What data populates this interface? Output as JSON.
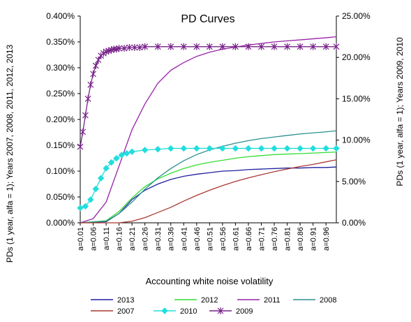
{
  "chart_data": {
    "type": "line",
    "title": "PD Curves",
    "xlabel": "Accounting white noise volatility",
    "ylabel_left": "PDs (1 year, alfa = 1); Years 2007, 2008, 2011, 2012, 2013",
    "ylabel_right": "PDs (1 year, alfa = 1); Years 2009, 2010",
    "x_labels": [
      "a=0.01",
      "a=0.06",
      "a=0.11",
      "a=0.16",
      "a=0.21",
      "a=0.26",
      "a=0.31",
      "a=0.36",
      "a=0.41",
      "a=0.46",
      "a=0.51",
      "a=0.56",
      "a=0.61",
      "a=0.66",
      "a=0.71",
      "a=0.76",
      "a=0.81",
      "a=0.86",
      "a=0.91",
      "a=0.96"
    ],
    "x_range": [
      0.01,
      1.0
    ],
    "ylim_left": [
      0,
      0.004
    ],
    "yticks_left": [
      "0.000%",
      "0.050%",
      "0.100%",
      "0.150%",
      "0.200%",
      "0.250%",
      "0.300%",
      "0.350%",
      "0.400%"
    ],
    "ylim_right": [
      0,
      0.25
    ],
    "yticks_right": [
      "0.00%",
      "5.00%",
      "10.00%",
      "15.00%",
      "20.00%",
      "25.00%"
    ],
    "grid": false,
    "legend_position": "bottom",
    "series": [
      {
        "name": "2013",
        "axis": "left",
        "color": "#1f1fa0",
        "marker": "none",
        "x": [
          0.01,
          0.11,
          0.16,
          0.21,
          0.26,
          0.31,
          0.36,
          0.41,
          0.46,
          0.51,
          0.56,
          0.61,
          0.66,
          0.71,
          0.76,
          0.81,
          0.86,
          0.91,
          0.96,
          1.0
        ],
        "values": [
          0.0,
          2e-05,
          0.00018,
          0.00045,
          0.00063,
          0.00075,
          0.00084,
          0.0009,
          0.00094,
          0.00097,
          0.001,
          0.00101,
          0.00103,
          0.00104,
          0.00105,
          0.00106,
          0.00106,
          0.00107,
          0.00107,
          0.00108
        ]
      },
      {
        "name": "2012",
        "axis": "left",
        "color": "#33dd33",
        "marker": "none",
        "x": [
          0.01,
          0.11,
          0.16,
          0.21,
          0.26,
          0.31,
          0.36,
          0.41,
          0.46,
          0.51,
          0.56,
          0.61,
          0.66,
          0.71,
          0.76,
          0.81,
          0.86,
          0.91,
          0.96,
          1.0
        ],
        "values": [
          0.0,
          4e-05,
          0.00022,
          0.00048,
          0.0007,
          0.00085,
          0.00096,
          0.00105,
          0.00112,
          0.00117,
          0.00121,
          0.00125,
          0.00128,
          0.0013,
          0.00132,
          0.00133,
          0.00134,
          0.00135,
          0.00136,
          0.00137
        ]
      },
      {
        "name": "2011",
        "axis": "left",
        "color": "#9922aa",
        "marker": "none",
        "x": [
          0.01,
          0.06,
          0.11,
          0.16,
          0.21,
          0.26,
          0.31,
          0.36,
          0.41,
          0.46,
          0.51,
          0.56,
          0.61,
          0.66,
          0.71,
          0.76,
          0.81,
          0.86,
          0.91,
          0.96,
          1.0
        ],
        "values": [
          0.0,
          8e-05,
          0.0004,
          0.0011,
          0.0018,
          0.0023,
          0.0027,
          0.00295,
          0.0031,
          0.00322,
          0.0033,
          0.00336,
          0.0034,
          0.00344,
          0.00347,
          0.0035,
          0.00352,
          0.00354,
          0.00356,
          0.00358,
          0.0036
        ]
      },
      {
        "name": "2008",
        "axis": "left",
        "color": "#2a9090",
        "marker": "none",
        "x": [
          0.01,
          0.11,
          0.16,
          0.21,
          0.26,
          0.31,
          0.36,
          0.41,
          0.46,
          0.51,
          0.56,
          0.61,
          0.66,
          0.71,
          0.76,
          0.81,
          0.86,
          0.91,
          0.96,
          1.0
        ],
        "values": [
          0.0,
          3e-05,
          0.00018,
          0.0004,
          0.00065,
          0.00087,
          0.00105,
          0.0012,
          0.00132,
          0.00141,
          0.00148,
          0.00154,
          0.00159,
          0.00163,
          0.00166,
          0.00169,
          0.00172,
          0.00174,
          0.00176,
          0.00178
        ]
      },
      {
        "name": "2007",
        "axis": "left",
        "color": "#a83a32",
        "marker": "none",
        "x": [
          0.01,
          0.16,
          0.21,
          0.26,
          0.31,
          0.36,
          0.41,
          0.46,
          0.51,
          0.56,
          0.61,
          0.66,
          0.71,
          0.76,
          0.81,
          0.86,
          0.91,
          0.96,
          1.0
        ],
        "values": [
          0.0,
          0.0,
          3e-05,
          0.0001,
          0.0002,
          0.0003,
          0.00042,
          0.00053,
          0.00063,
          0.00072,
          0.0008,
          0.00087,
          0.00093,
          0.00099,
          0.00104,
          0.00109,
          0.00113,
          0.00118,
          0.00122
        ]
      },
      {
        "name": "2010",
        "axis": "right",
        "color": "#22dddd",
        "marker": "diamond",
        "x": [
          0.01,
          0.03,
          0.05,
          0.07,
          0.09,
          0.11,
          0.13,
          0.15,
          0.17,
          0.19,
          0.21,
          0.26,
          0.31,
          0.36,
          0.41,
          0.46,
          0.51,
          0.56,
          0.61,
          0.66,
          0.71,
          0.76,
          0.81,
          0.86,
          0.91,
          0.96,
          1.0
        ],
        "values": [
          0.018,
          0.02,
          0.028,
          0.041,
          0.054,
          0.066,
          0.073,
          0.078,
          0.082,
          0.084,
          0.086,
          0.088,
          0.089,
          0.09,
          0.09,
          0.09,
          0.09,
          0.09,
          0.09,
          0.09,
          0.09,
          0.09,
          0.09,
          0.09,
          0.09,
          0.09,
          0.09
        ]
      },
      {
        "name": "2009",
        "axis": "right",
        "color": "#772288",
        "marker": "star",
        "x": [
          0.01,
          0.02,
          0.03,
          0.04,
          0.05,
          0.06,
          0.07,
          0.08,
          0.09,
          0.1,
          0.11,
          0.12,
          0.13,
          0.14,
          0.15,
          0.16,
          0.18,
          0.2,
          0.22,
          0.24,
          0.26,
          0.31,
          0.36,
          0.41,
          0.46,
          0.51,
          0.56,
          0.61,
          0.66,
          0.71,
          0.76,
          0.81,
          0.86,
          0.91,
          0.96,
          1.0
        ],
        "values": [
          0.092,
          0.11,
          0.13,
          0.15,
          0.167,
          0.18,
          0.19,
          0.197,
          0.202,
          0.205,
          0.207,
          0.208,
          0.209,
          0.21,
          0.21,
          0.211,
          0.211,
          0.212,
          0.212,
          0.212,
          0.213,
          0.213,
          0.213,
          0.213,
          0.213,
          0.213,
          0.213,
          0.213,
          0.213,
          0.213,
          0.213,
          0.213,
          0.213,
          0.213,
          0.213,
          0.213
        ]
      }
    ]
  }
}
